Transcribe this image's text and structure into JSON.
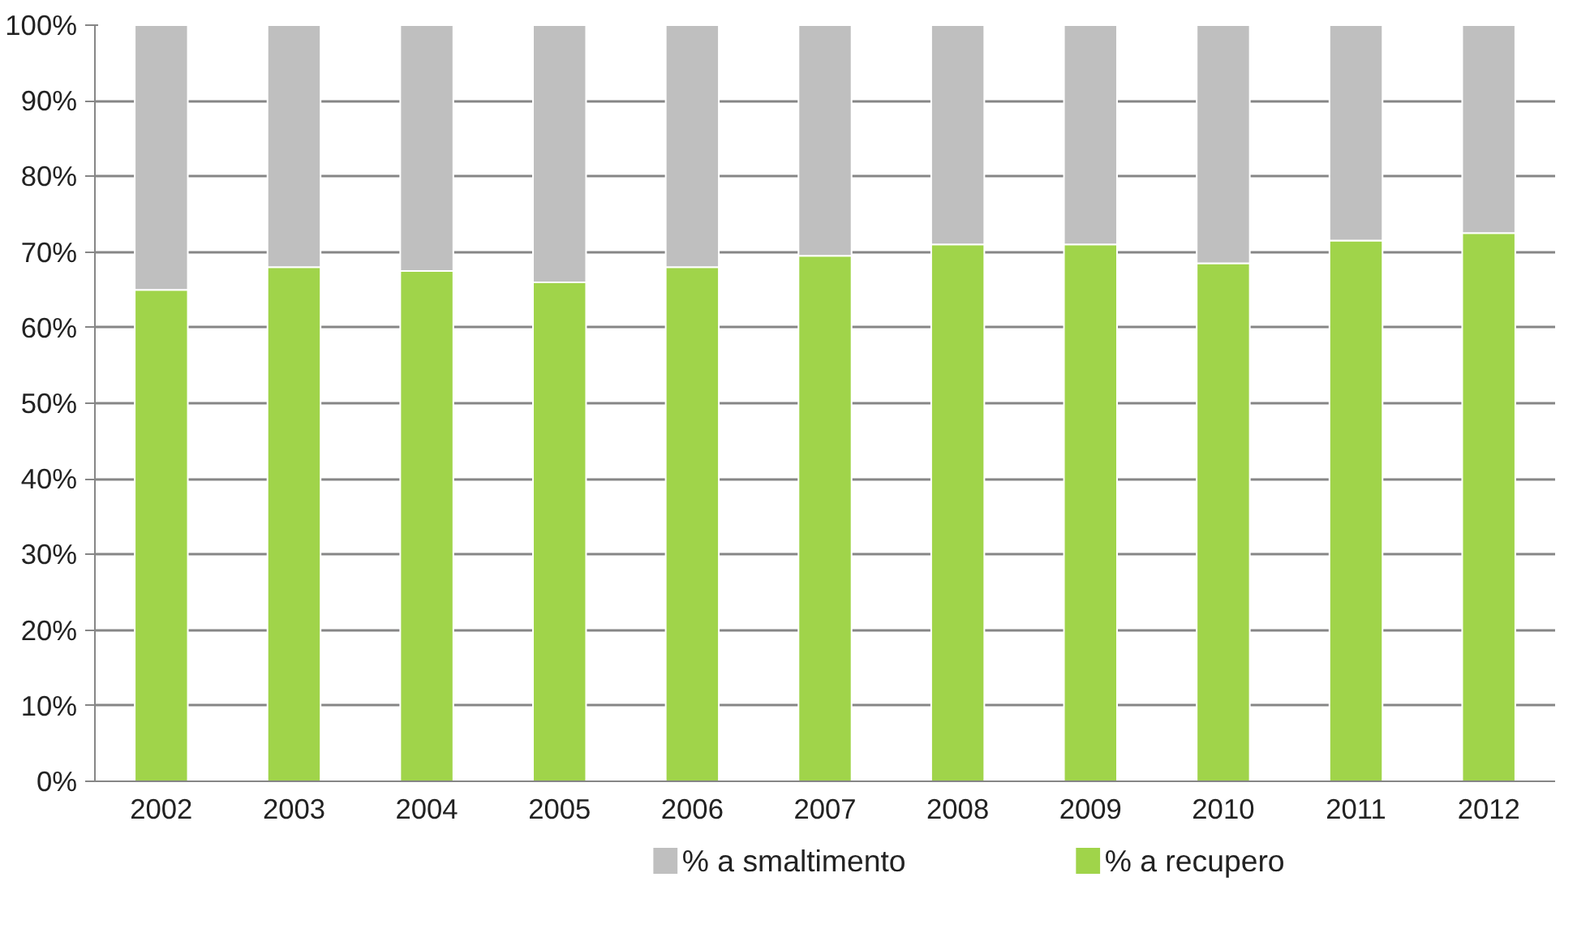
{
  "chart_data": {
    "type": "bar",
    "stacked": true,
    "categories": [
      "2002",
      "2003",
      "2004",
      "2005",
      "2006",
      "2007",
      "2008",
      "2009",
      "2010",
      "2011",
      "2012"
    ],
    "series": [
      {
        "name": "% a recupero",
        "color": "#a0d44a",
        "values": [
          65,
          68,
          67.5,
          66,
          68,
          69.5,
          71,
          71,
          68.5,
          71.5,
          72.5
        ]
      },
      {
        "name": "% a smaltimento",
        "color": "#bfbfbf",
        "values": [
          35,
          32,
          32.5,
          34,
          32,
          30.5,
          29,
          29,
          31.5,
          28.5,
          27.5
        ]
      }
    ],
    "ylim": [
      0,
      100
    ],
    "yticks": [
      {
        "value": 0,
        "label": "0%"
      },
      {
        "value": 10,
        "label": "10%"
      },
      {
        "value": 20,
        "label": "20%"
      },
      {
        "value": 30,
        "label": "30%"
      },
      {
        "value": 40,
        "label": "40%"
      },
      {
        "value": 50,
        "label": "50%"
      },
      {
        "value": 60,
        "label": "60%"
      },
      {
        "value": 70,
        "label": "70%"
      },
      {
        "value": 80,
        "label": "80%"
      },
      {
        "value": 90,
        "label": "90%"
      },
      {
        "value": 100,
        "label": "100%"
      }
    ],
    "grid": "y",
    "legend": "bottom"
  }
}
